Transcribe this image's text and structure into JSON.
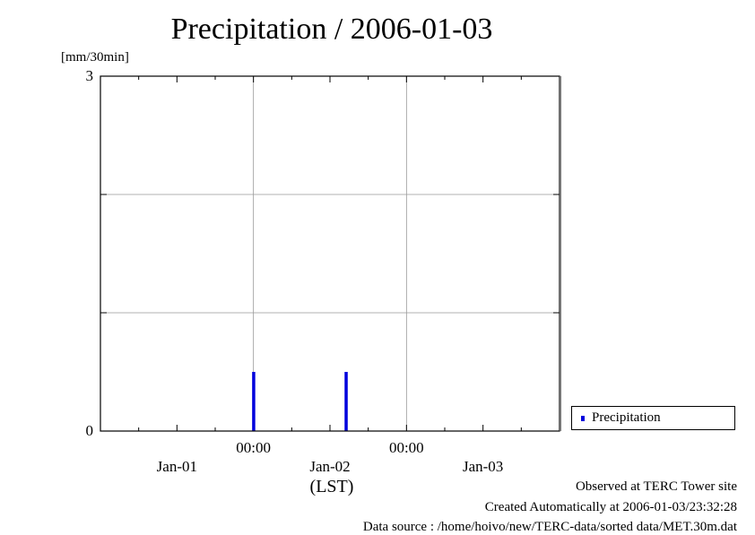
{
  "chart_data": {
    "type": "bar",
    "title": "Precipitation / 2006-01-03",
    "ylabel": "[mm/30min]",
    "xlabel": "(LST)",
    "ylim": [
      0,
      3
    ],
    "yticks": [
      "3",
      "0"
    ],
    "ygrid_values": [
      1,
      2
    ],
    "xlim": [
      "2006-01-01 00:00",
      "2006-01-04 00:00"
    ],
    "xticks_time": [
      {
        "at": "2006-01-02 00:00",
        "label": "00:00"
      },
      {
        "at": "2006-01-03 00:00",
        "label": "00:00"
      }
    ],
    "xticks_date": [
      {
        "at": "2006-01-01 12:00",
        "label": "Jan-01"
      },
      {
        "at": "2006-01-02 12:00",
        "label": "Jan-02"
      },
      {
        "at": "2006-01-03 12:00",
        "label": "Jan-03"
      }
    ],
    "grid": true,
    "series": [
      {
        "name": "Precipitation",
        "color": "#0000dd",
        "points": [
          {
            "x": "2006-01-02 00:00",
            "y": 0.5
          },
          {
            "x": "2006-01-02 14:30",
            "y": 0.5
          }
        ]
      }
    ],
    "legend": {
      "placement": "right-bottom",
      "entries": [
        "Precipitation"
      ]
    }
  },
  "footer": {
    "line1": "Observed at TERC Tower site",
    "line2": "Created Automatically at 2006-01-03/23:32:28",
    "line3": "Data source : /home/hoivo/new/TERC-data/sorted  data/MET.30m.dat"
  }
}
